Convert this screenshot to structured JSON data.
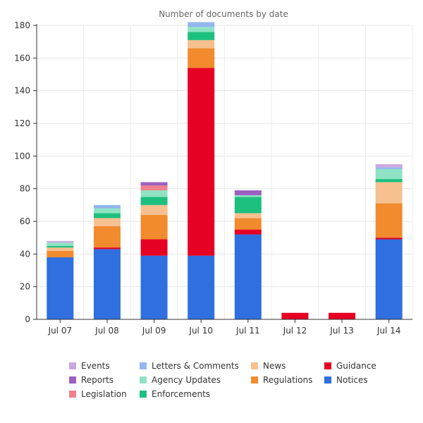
{
  "chart_data": {
    "type": "bar",
    "stacked": true,
    "title": "Number of documents by date",
    "xlabel": "",
    "ylabel": "",
    "ylim": [
      0,
      180
    ],
    "yticks": [
      0,
      20,
      40,
      60,
      80,
      100,
      120,
      140,
      160,
      180
    ],
    "grid": true,
    "legend_position": "bottom",
    "categories": [
      "Jul 07",
      "Jul 08",
      "Jul 09",
      "Jul 10",
      "Jul 11",
      "Jul 12",
      "Jul 13",
      "Jul 14"
    ],
    "series": [
      {
        "name": "Notices",
        "color": "#2f6fdf",
        "values": [
          38,
          43,
          39,
          39,
          52,
          0,
          0,
          49
        ]
      },
      {
        "name": "Guidance",
        "color": "#e60023",
        "values": [
          0,
          1,
          10,
          115,
          3,
          4,
          4,
          1
        ]
      },
      {
        "name": "Regulations",
        "color": "#f28a2e",
        "values": [
          4,
          13,
          15,
          12,
          7,
          0,
          0,
          21
        ]
      },
      {
        "name": "News",
        "color": "#f7c08f",
        "values": [
          2,
          5,
          6,
          5,
          3,
          0,
          0,
          13
        ]
      },
      {
        "name": "Enforcements",
        "color": "#1dbf7f",
        "values": [
          1,
          3,
          5,
          5,
          10,
          0,
          0,
          2
        ]
      },
      {
        "name": "Agency Updates",
        "color": "#8fe3c4",
        "values": [
          2,
          3,
          4,
          3,
          1,
          0,
          0,
          6
        ]
      },
      {
        "name": "Letters & Comments",
        "color": "#93b6ef",
        "values": [
          0,
          2,
          0,
          3,
          0,
          0,
          0,
          1
        ]
      },
      {
        "name": "Legislation",
        "color": "#f0808e",
        "values": [
          0,
          0,
          3,
          0,
          0,
          0,
          0,
          0
        ]
      },
      {
        "name": "Reports",
        "color": "#9b5fc0",
        "values": [
          0,
          0,
          2,
          0,
          3,
          0,
          0,
          0
        ]
      },
      {
        "name": "Events",
        "color": "#c9a9e0",
        "values": [
          1,
          0,
          0,
          0,
          0,
          0,
          0,
          2
        ]
      }
    ],
    "legend_order": [
      [
        "Events",
        "Reports",
        "Legislation"
      ],
      [
        "Letters & Comments",
        "Agency Updates",
        "Enforcements"
      ],
      [
        "News",
        "Regulations"
      ],
      [
        "Guidance",
        "Notices"
      ]
    ]
  }
}
